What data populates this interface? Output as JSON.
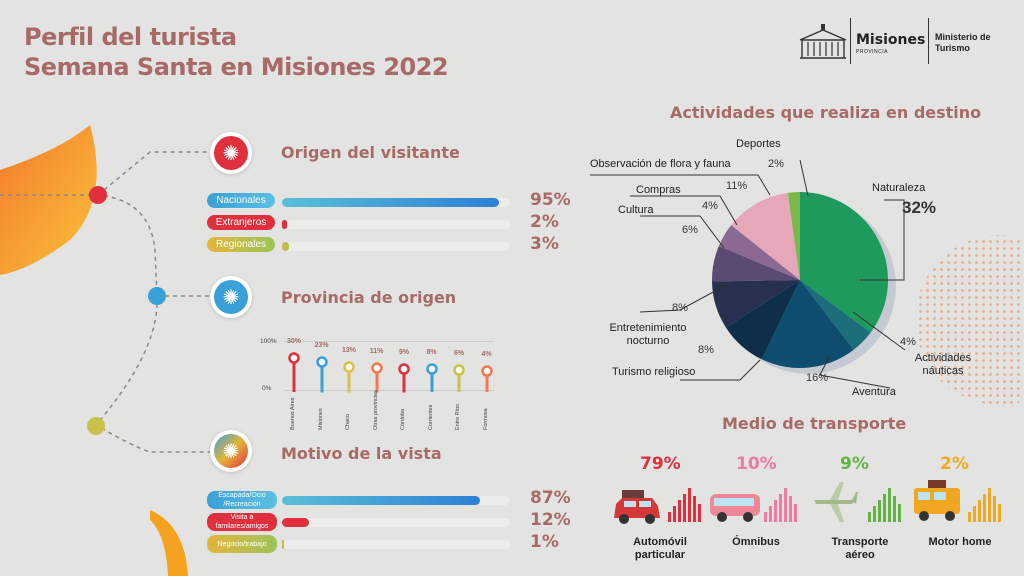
{
  "title_line1": "Perfil del turista",
  "title_line2": "Semana Santa en Misiones 2022",
  "logo": {
    "brand": "Misiones",
    "sub": "PROVINCIA",
    "ministry": "Ministerio de Turismo"
  },
  "sections": {
    "origen": "Origen del visitante",
    "provincia": "Provincia de origen",
    "motivo": "Motivo de la vista",
    "actividades": "Actividades que realiza en destino",
    "transporte": "Medio de transporte"
  },
  "colors": {
    "accent_text": "#a86a66",
    "blue": "#3aa0d8",
    "red": "#e0303e",
    "yellow": "#e4b53c",
    "green": "#1f9a5d"
  },
  "chart_data": [
    {
      "type": "bar",
      "title": "Origen del visitante",
      "categories": [
        "Nacionales",
        "Extranjeros",
        "Regionales"
      ],
      "values": [
        95,
        2,
        3
      ],
      "labels": [
        "95%",
        "2%",
        "3%"
      ],
      "unit": "%"
    },
    {
      "type": "bar",
      "title": "Provincia de origen",
      "categories": [
        "Buenos Aires",
        "Misiones",
        "Chaco",
        "Otras provincias",
        "Córdoba",
        "Corrientes",
        "Entre Ríos",
        "Formosa"
      ],
      "values": [
        30,
        23,
        13,
        11,
        9,
        8,
        6,
        4
      ],
      "labels": [
        "30%",
        "23%",
        "13%",
        "11%",
        "9%",
        "8%",
        "6%",
        "4%"
      ],
      "axis_ticks": [
        "100%",
        "0%"
      ],
      "ylim": [
        0,
        100
      ]
    },
    {
      "type": "bar",
      "title": "Motivo de la vista",
      "categories": [
        "Escapada/Ocio /Recreación",
        "Visita a familares/amigos",
        "Negocio/trabajo"
      ],
      "values": [
        87,
        12,
        1
      ],
      "labels": [
        "87%",
        "12%",
        "1%"
      ]
    },
    {
      "type": "pie",
      "title": "Actividades que realiza en destino",
      "categories": [
        "Naturaleza",
        "Actividades náuticas",
        "Aventura",
        "Turismo religioso",
        "Entretenimiento nocturno",
        "Cultura",
        "Compras",
        "Observación de flora y fauna",
        "Deportes"
      ],
      "values": [
        32,
        4,
        16,
        8,
        8,
        6,
        4,
        11,
        2
      ],
      "labels": [
        "32%",
        "4%",
        "16%",
        "8%",
        "8%",
        "6%",
        "4%",
        "11%",
        "2%"
      ],
      "colors": [
        "#1f9a5d",
        "#1c6f7a",
        "#0e4d6e",
        "#0f2e4a",
        "#27304f",
        "#5a4a74",
        "#8a6a93",
        "#e6a7b8",
        "#7bb84a"
      ]
    },
    {
      "type": "bar",
      "title": "Medio de transporte",
      "categories": [
        "Automóvil particular",
        "Ómnibus",
        "Transporte aéreo",
        "Motor home"
      ],
      "values": [
        79,
        10,
        9,
        2
      ],
      "labels": [
        "79%",
        "10%",
        "9%",
        "2%"
      ],
      "colors": [
        "#e0303e",
        "#f07aa0",
        "#62b344",
        "#eeaa22"
      ]
    }
  ]
}
